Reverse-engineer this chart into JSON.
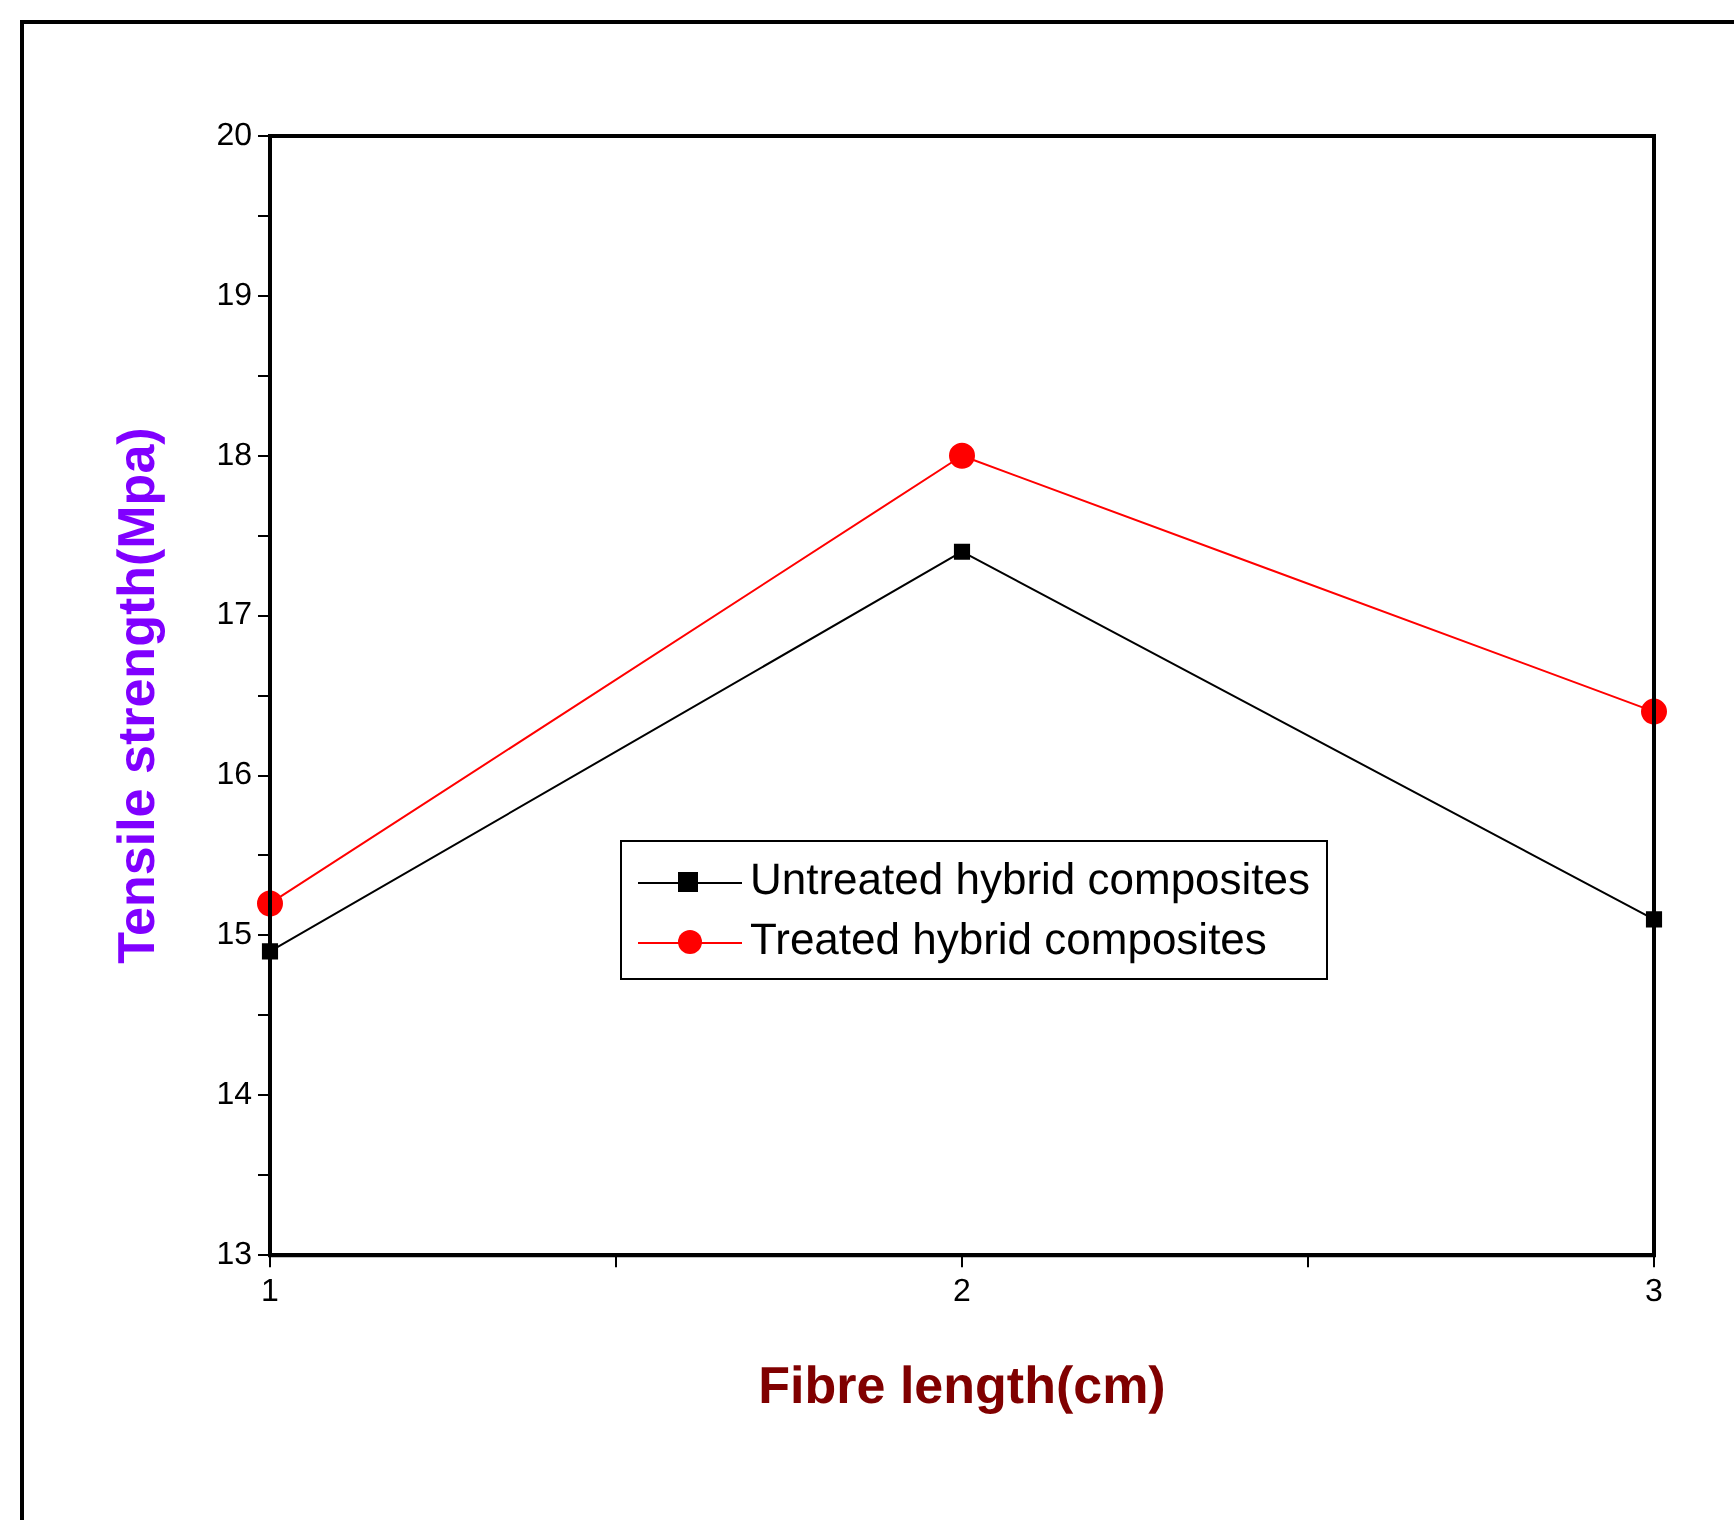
{
  "chart_data": {
    "type": "line",
    "xlabel": "Fibre length(cm)",
    "ylabel": "Tensile strength(Mpa)",
    "x": [
      1,
      2,
      3
    ],
    "series": [
      {
        "name": "Untreated hybrid composites",
        "color": "#000000",
        "marker": "square",
        "values": [
          14.9,
          17.4,
          15.1
        ]
      },
      {
        "name": "Treated hybrid composites",
        "color": "#ff0000",
        "marker": "circle",
        "values": [
          15.2,
          18.0,
          16.4
        ]
      }
    ],
    "xlim": [
      1,
      3
    ],
    "xticks": [
      1,
      {
        "value": 1.5,
        "label": null
      },
      2,
      {
        "value": 2.5,
        "label": null
      },
      3
    ],
    "ylim": [
      13,
      20
    ],
    "yticks": [
      13,
      {
        "value": 13.5,
        "label": null
      },
      14,
      {
        "value": 14.5,
        "label": null
      },
      15,
      {
        "value": 15.5,
        "label": null
      },
      16,
      {
        "value": 16.5,
        "label": null
      },
      17,
      {
        "value": 17.5,
        "label": null
      },
      18,
      {
        "value": 18.5,
        "label": null
      },
      19,
      {
        "value": 19.5,
        "label": null
      },
      20
    ],
    "grid": false,
    "legend": "right",
    "line_style": "solid"
  }
}
